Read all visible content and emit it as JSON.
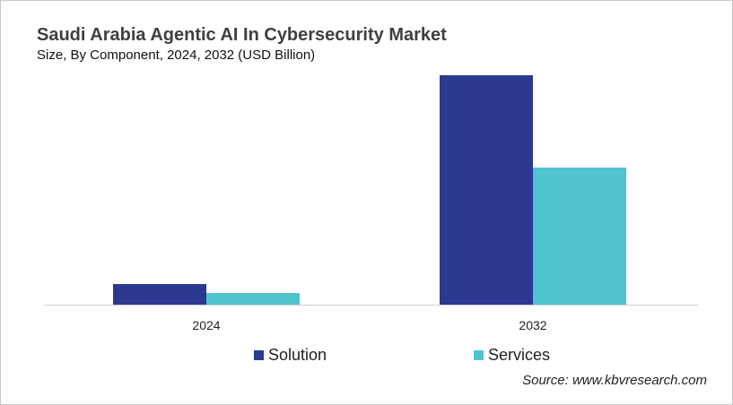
{
  "chart_data": {
    "type": "bar",
    "title": "Saudi Arabia Agentic AI In Cybersecurity Market",
    "subtitle": "Size, By Component, 2024, 2032 (USD Billion)",
    "categories": [
      "2024",
      "2032"
    ],
    "series": [
      {
        "name": "Solution",
        "values": [
          0.23,
          2.56
        ],
        "color": "#2b3990"
      },
      {
        "name": "Services",
        "values": [
          0.13,
          1.53
        ],
        "color": "#4fc4cf"
      }
    ],
    "ylim": [
      0,
      2.56
    ],
    "xlabel": "",
    "ylabel": "",
    "grid": false,
    "legend_position": "bottom",
    "source": "Source: www.kbvresearch.com"
  }
}
